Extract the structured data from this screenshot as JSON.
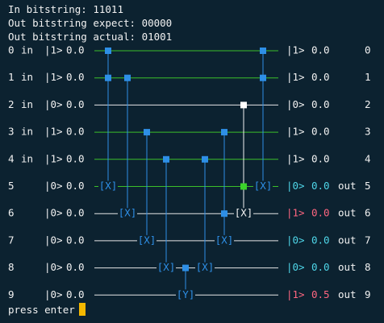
{
  "header": {
    "in_bitstring": "In bitstring: 11011",
    "out_expect": "Out bitstring expect: 00000",
    "out_actual": "Out bitstring actual: 01001"
  },
  "rows": [
    {
      "index": "0",
      "prefix": "in ",
      "ket_in": "|1>",
      "val_in": "0.0",
      "ket_out": "|1>",
      "val_out": "0.0",
      "suffix": "",
      "index_right": "0",
      "wire": "green",
      "out_color": "#f2f2f2"
    },
    {
      "index": "1",
      "prefix": "in ",
      "ket_in": "|1>",
      "val_in": "0.0",
      "ket_out": "|1>",
      "val_out": "0.0",
      "suffix": "",
      "index_right": "1",
      "wire": "green",
      "out_color": "#f2f2f2"
    },
    {
      "index": "2",
      "prefix": "in ",
      "ket_in": "|0>",
      "val_in": "0.0",
      "ket_out": "|0>",
      "val_out": "0.0",
      "suffix": "",
      "index_right": "2",
      "wire": "white",
      "out_color": "#f2f2f2"
    },
    {
      "index": "3",
      "prefix": "in ",
      "ket_in": "|1>",
      "val_in": "0.0",
      "ket_out": "|1>",
      "val_out": "0.0",
      "suffix": "",
      "index_right": "3",
      "wire": "green",
      "out_color": "#f2f2f2"
    },
    {
      "index": "4",
      "prefix": "in ",
      "ket_in": "|1>",
      "val_in": "0.0",
      "ket_out": "|1>",
      "val_out": "0.0",
      "suffix": "",
      "index_right": "4",
      "wire": "green",
      "out_color": "#f2f2f2"
    },
    {
      "index": "5",
      "prefix": "   ",
      "ket_in": "|0>",
      "val_in": "0.0",
      "ket_out": "|0>",
      "val_out": "0.0",
      "suffix": "out",
      "index_right": "5",
      "wire": "green",
      "out_color": "#4fd6e8"
    },
    {
      "index": "6",
      "prefix": "   ",
      "ket_in": "|0>",
      "val_in": "0.0",
      "ket_out": "|1>",
      "val_out": "0.0",
      "suffix": "out",
      "index_right": "6",
      "wire": "white",
      "out_color": "#ff6680"
    },
    {
      "index": "7",
      "prefix": "   ",
      "ket_in": "|0>",
      "val_in": "0.0",
      "ket_out": "|0>",
      "val_out": "0.0",
      "suffix": "out",
      "index_right": "7",
      "wire": "white",
      "out_color": "#4fd6e8"
    },
    {
      "index": "8",
      "prefix": "   ",
      "ket_in": "|0>",
      "val_in": "0.0",
      "ket_out": "|0>",
      "val_out": "0.0",
      "suffix": "out",
      "index_right": "8",
      "wire": "white",
      "out_color": "#4fd6e8"
    },
    {
      "index": "9",
      "prefix": "   ",
      "ket_in": "|0>",
      "val_in": "0.0",
      "ket_out": "|1>",
      "val_out": "0.5",
      "suffix": "out",
      "index_right": "9",
      "wire": "white",
      "out_color": "#ff6680"
    }
  ],
  "gates": [
    {
      "kind": "cnot",
      "controls": [
        0,
        1
      ],
      "target": 5,
      "label": "[X]",
      "target_color": "#2e8fe6"
    },
    {
      "kind": "cnot",
      "controls": [
        1
      ],
      "target": 6,
      "label": "[X]",
      "target_color": "#2e8fe6"
    },
    {
      "kind": "cnot",
      "controls": [
        3
      ],
      "target": 7,
      "label": "[X]",
      "target_color": "#2e8fe6"
    },
    {
      "kind": "cnot",
      "controls": [
        4
      ],
      "target": 8,
      "label": "[X]",
      "target_color": "#2e8fe6"
    },
    {
      "kind": "y",
      "controls": [],
      "target": 9,
      "label": "[Y]",
      "target_color": "#2e8fe6"
    },
    {
      "kind": "cnot",
      "controls": [
        8
      ],
      "target": 7,
      "label": "",
      "target_color": "#2e8fe6"
    },
    {
      "kind": "cnot",
      "controls": [
        4
      ],
      "target": 8,
      "label": "[X]",
      "target_color": "#2e8fe6"
    },
    {
      "kind": "cnot",
      "controls": [
        3,
        6
      ],
      "target": 7,
      "label": "[X]",
      "target_color": "#2e8fe6"
    },
    {
      "kind": "cnot",
      "controls": [
        2,
        5
      ],
      "target": 6,
      "label": "[X]",
      "target_color": "#f2f2f2"
    },
    {
      "kind": "cnot",
      "controls": [
        0,
        1
      ],
      "target": 5,
      "label": "[X]",
      "target_color": "#2e8fe6"
    }
  ],
  "colors": {
    "background": "#0c2230",
    "wire_green": "#3bbf2a",
    "wire_white": "#e6e6e6",
    "gate_blue": "#2e8fe6",
    "active_control": "#3bd32a",
    "inactive_control": "#ffffff",
    "cursor": "#f5b800"
  },
  "prompt": "press enter"
}
